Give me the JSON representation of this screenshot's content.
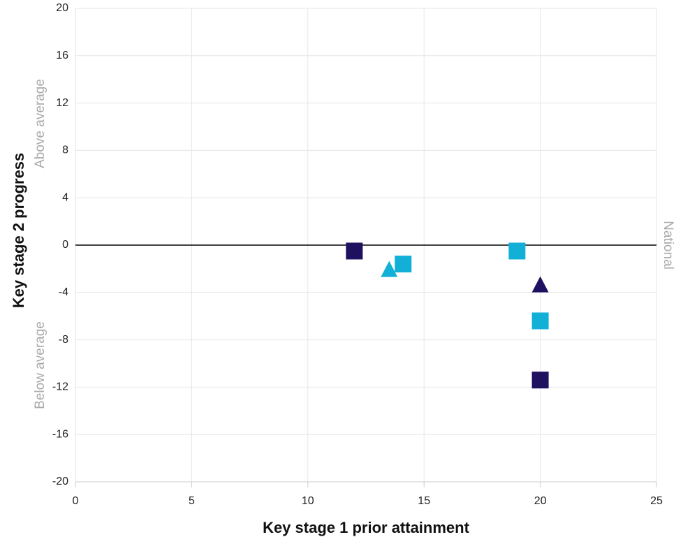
{
  "chart_data": {
    "type": "scatter",
    "x_label": "Key stage 1 prior attainment",
    "y_label": "Key stage 2 progress",
    "annotations": [
      "Above average",
      "Below average"
    ],
    "national_line": {
      "value": 0,
      "label": "National"
    },
    "xlim": [
      0,
      25
    ],
    "xticks": [
      0,
      5,
      10,
      15,
      20,
      25
    ],
    "ylim": [
      -20,
      20
    ],
    "yticks": [
      -20,
      -16,
      -12,
      -8,
      -4,
      0,
      4,
      8,
      12,
      16,
      20
    ],
    "grid": true,
    "series": [
      {
        "color": "#1f1060",
        "marker": "square",
        "x": [
          12,
          20
        ],
        "values": [
          -0.5,
          -11.4
        ]
      },
      {
        "color": "#1f1060",
        "marker": "triangle",
        "x": [
          20
        ],
        "values": [
          -3.4
        ]
      },
      {
        "color": "#12b0d6",
        "marker": "square",
        "x": [
          14.1,
          19,
          20
        ],
        "values": [
          -1.6,
          -0.5,
          -6.4
        ]
      },
      {
        "color": "#12b0d6",
        "marker": "triangle",
        "x": [
          13.5
        ],
        "values": [
          -2.1
        ]
      }
    ]
  }
}
